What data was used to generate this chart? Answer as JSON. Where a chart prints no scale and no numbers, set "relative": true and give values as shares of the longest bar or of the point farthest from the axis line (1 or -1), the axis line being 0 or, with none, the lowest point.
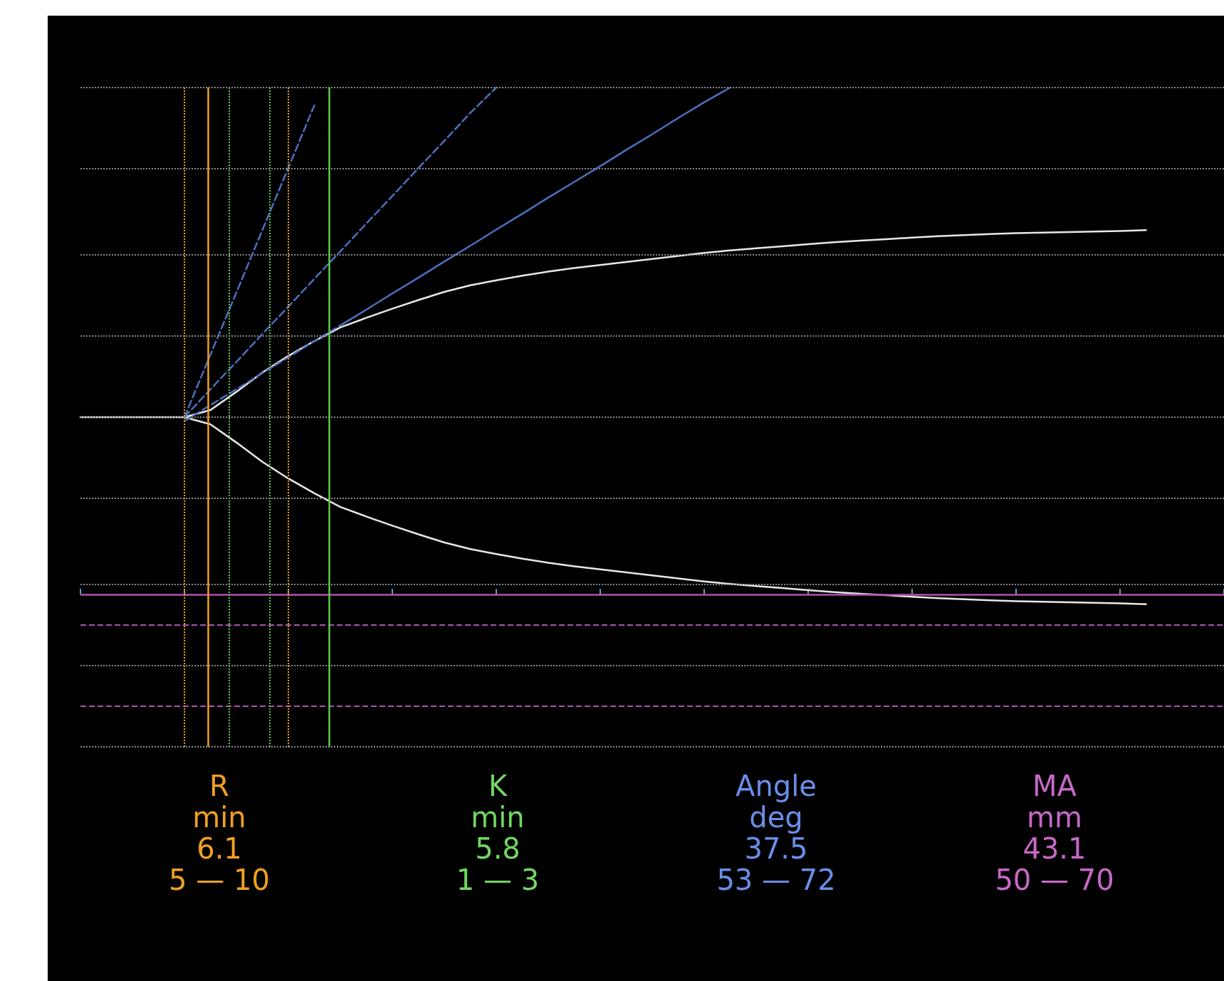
{
  "chart_data": {
    "type": "line",
    "relative": true,
    "categories": [
      null,
      null,
      null,
      null,
      null,
      null,
      null,
      null,
      null,
      null,
      null,
      null,
      null,
      null,
      null,
      null,
      null,
      null,
      null,
      null,
      null,
      null,
      null,
      null,
      null,
      null,
      null,
      null,
      null,
      null,
      null,
      null,
      null,
      null,
      null,
      null,
      null,
      null,
      null,
      null,
      null,
      null,
      null,
      null,
      null
    ],
    "tick_labels": false,
    "marker": "none",
    "series": [
      {
        "color": "#e8e8e8",
        "line_style": "solid",
        "values": [
          0.35,
          0.35,
          0.35,
          0.35,
          0.35,
          0.364,
          0.4,
          0.438,
          0.471,
          0.5,
          0.527,
          0.546,
          0.564,
          0.581,
          0.597,
          0.61,
          0.62,
          0.629,
          0.637,
          0.644,
          0.65,
          0.656,
          0.662,
          0.668,
          0.674,
          0.679,
          0.683,
          0.687,
          0.691,
          0.695,
          0.698,
          0.701,
          0.704,
          0.707,
          0.709,
          0.711,
          0.713,
          0.714,
          0.715,
          0.716,
          0.717,
          0.719,
          null,
          null,
          null
        ]
      },
      {
        "color": "#e8e8e8",
        "line_style": "solid",
        "values": [
          null,
          null,
          null,
          null,
          0.35,
          0.336,
          0.3,
          0.262,
          0.229,
          0.2,
          0.173,
          0.154,
          0.136,
          0.119,
          0.103,
          0.09,
          0.08,
          0.071,
          0.063,
          0.056,
          0.05,
          0.044,
          0.038,
          0.032,
          0.026,
          0.021,
          0.017,
          0.013,
          0.009,
          0.005,
          0.002,
          -0.001,
          -0.004,
          -0.007,
          -0.009,
          -0.011,
          -0.013,
          -0.014,
          -0.015,
          -0.016,
          -0.017,
          -0.019,
          null,
          null,
          null
        ]
      },
      {
        "color": "#4a70c0",
        "line_style": "solid",
        "values": [
          null,
          null,
          null,
          null,
          null,
          null,
          null,
          null,
          null,
          null,
          0.531,
          0.562,
          0.594,
          0.625,
          0.657,
          0.688,
          0.72,
          0.751,
          0.783,
          0.814,
          0.845,
          0.877,
          0.908,
          0.94,
          0.971,
          1.0,
          null,
          null,
          null,
          null,
          null,
          null,
          null,
          null,
          null,
          null,
          null,
          null,
          null,
          null,
          null,
          null,
          null,
          null,
          null
        ]
      },
      {
        "color": "#4a70c0",
        "line_style": "dashed",
        "values": [
          null,
          null,
          null,
          null,
          0.342,
          0.374,
          0.405,
          0.437,
          0.468,
          0.5,
          0.531,
          null,
          null,
          null,
          null,
          null,
          null,
          null,
          null,
          null,
          null,
          null,
          null,
          null,
          null,
          null,
          null,
          null,
          null,
          null,
          null,
          null,
          null,
          null,
          null,
          null,
          null,
          null,
          null,
          null,
          null,
          null,
          null,
          null,
          null
        ]
      },
      {
        "color": "#4a70c0",
        "line_style": "dashed",
        "values": [
          null,
          null,
          null,
          null,
          0.35,
          0.473,
          0.596,
          0.719,
          0.842,
          0.965,
          null,
          null,
          null,
          null,
          null,
          null,
          null,
          null,
          null,
          null,
          null,
          null,
          null,
          null,
          null,
          null,
          null,
          null,
          null,
          null,
          null,
          null,
          null,
          null,
          null,
          null,
          null,
          null,
          null,
          null,
          null,
          null,
          null,
          null,
          null
        ]
      },
      {
        "color": "#4a70c0",
        "line_style": "dashed",
        "values": [
          null,
          null,
          null,
          null,
          0.35,
          0.405,
          0.459,
          0.514,
          0.568,
          0.623,
          0.677,
          0.732,
          0.786,
          0.841,
          0.895,
          0.95,
          1.0,
          null,
          null,
          null,
          null,
          null,
          null,
          null,
          null,
          null,
          null,
          null,
          null,
          null,
          null,
          null,
          null,
          null,
          null,
          null,
          null,
          null,
          null,
          null,
          null,
          null,
          null,
          null,
          null
        ]
      }
    ],
    "ref_lines": [
      {
        "axis": "y",
        "value": 1.0,
        "color": "#8a8a8a",
        "line_style": "dotted"
      },
      {
        "axis": "y",
        "value": 0.838,
        "color": "#8a8a8a",
        "line_style": "dotted"
      },
      {
        "axis": "y",
        "value": 0.669,
        "color": "#8a8a8a",
        "line_style": "dotted"
      },
      {
        "axis": "y",
        "value": 0.512,
        "color": "#8a8a8a",
        "line_style": "dotted"
      },
      {
        "axis": "y",
        "value": 0.35,
        "color": "#8a8a8a",
        "line_style": "dotted"
      },
      {
        "axis": "y",
        "value": 0.187,
        "color": "#8a8a8a",
        "line_style": "dotted"
      },
      {
        "axis": "y",
        "value": 0.023,
        "color": "#8a8a8a",
        "line_style": "dotted"
      },
      {
        "axis": "y",
        "value": -0.142,
        "color": "#8a8a8a",
        "line_style": "dotted"
      },
      {
        "axis": "y",
        "value": -0.3,
        "color": "#8a8a8a",
        "line_style": "dotted"
      },
      {
        "axis": "y",
        "value": 0,
        "color": "#b050b0",
        "line_style": "solid"
      },
      {
        "axis": "y",
        "value": -0.057,
        "color": "#b050b0",
        "line_style": "dashed"
      },
      {
        "axis": "y",
        "value": -0.221,
        "color": "#b050b0",
        "line_style": "dashed"
      }
    ],
    "annotations": [
      "R\nmin\n6.1\n5 — 10",
      "K\nmin\n5.8\n1 — 3",
      "Angle\ndeg\n37.5\n53 — 72",
      "MA\nmm\n43.1\n50 — 70"
    ]
  }
}
